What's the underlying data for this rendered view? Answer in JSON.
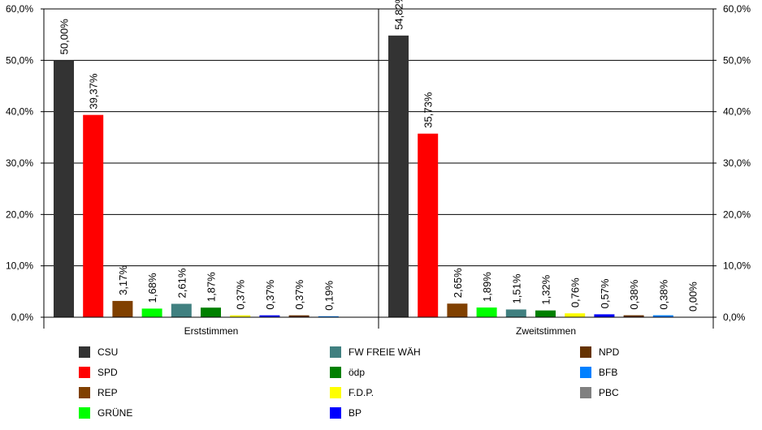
{
  "chart_data": {
    "type": "bar",
    "groups": [
      "Erststimmen",
      "Zweitstimmen"
    ],
    "ylim": [
      0,
      60
    ],
    "y_ticks": [
      "0,0%",
      "10,0%",
      "20,0%",
      "30,0%",
      "40,0%",
      "50,0%",
      "60,0%"
    ],
    "grid": true,
    "legend_position": "bottom",
    "series": [
      {
        "name": "CSU",
        "color": "#333333",
        "values": [
          50.0,
          54.82
        ],
        "labels": [
          "50,00%",
          "54,82%"
        ]
      },
      {
        "name": "SPD",
        "color": "#ff0000",
        "values": [
          39.37,
          35.73
        ],
        "labels": [
          "39,37%",
          "35,73%"
        ]
      },
      {
        "name": "REP",
        "color": "#804000",
        "values": [
          3.17,
          2.65
        ],
        "labels": [
          "3,17%",
          "2,65%"
        ]
      },
      {
        "name": "GRÜNE",
        "color": "#00ff00",
        "values": [
          1.68,
          1.89
        ],
        "labels": [
          "1,68%",
          "1,89%"
        ]
      },
      {
        "name": "FW FREIE WÄH",
        "color": "#408080",
        "values": [
          2.61,
          1.51
        ],
        "labels": [
          "2,61%",
          "1,51%"
        ]
      },
      {
        "name": "ödp",
        "color": "#008000",
        "values": [
          1.87,
          1.32
        ],
        "labels": [
          "1,87%",
          "1,32%"
        ]
      },
      {
        "name": "F.D.P.",
        "color": "#ffff00",
        "values": [
          0.37,
          0.76
        ],
        "labels": [
          "0,37%",
          "0,76%"
        ]
      },
      {
        "name": "BP",
        "color": "#0000ff",
        "values": [
          0.37,
          0.57
        ],
        "labels": [
          "0,37%",
          "0,57%"
        ]
      },
      {
        "name": "NPD",
        "color": "#663300",
        "values": [
          0.37,
          0.38
        ],
        "labels": [
          "0,37%",
          "0,38%"
        ]
      },
      {
        "name": "BFB",
        "color": "#0080ff",
        "values": [
          0.19,
          0.38
        ],
        "labels": [
          "0,19%",
          "0,38%"
        ]
      },
      {
        "name": "PBC",
        "color": "#808080",
        "values": [
          null,
          0.0
        ],
        "labels": [
          null,
          "0,00%"
        ]
      }
    ]
  }
}
